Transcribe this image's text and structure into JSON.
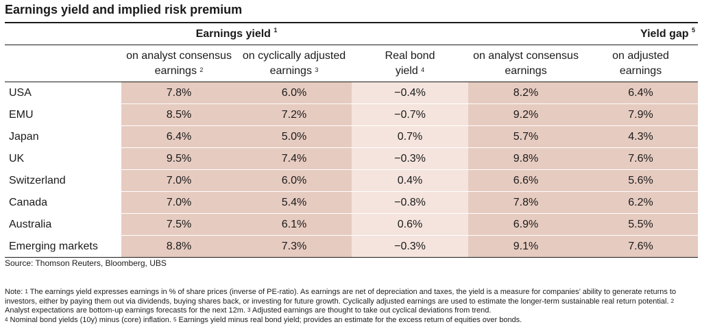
{
  "title": "Earnings yield and implied risk premium",
  "groups": {
    "earnings_yield": {
      "label": "Earnings yield",
      "note": "1"
    },
    "yield_gap": {
      "label": "Yield gap",
      "note": "5"
    }
  },
  "columns": [
    {
      "line1": "on analyst consensus",
      "line2": "earnings",
      "note": "2"
    },
    {
      "line1": "on cyclically adjusted",
      "line2": "earnings",
      "note": "3"
    },
    {
      "line1": "Real bond",
      "line2": "yield",
      "note": "4"
    },
    {
      "line1": "on analyst consensus",
      "line2": "earnings",
      "note": ""
    },
    {
      "line1": "on adjusted",
      "line2": "earnings",
      "note": ""
    }
  ],
  "rows": [
    {
      "label": "USA",
      "values": [
        "7.8%",
        "6.0%",
        "−0.4%",
        "8.2%",
        "6.4%"
      ]
    },
    {
      "label": "EMU",
      "values": [
        "8.5%",
        "7.2%",
        "−0.7%",
        "9.2%",
        "7.9%"
      ]
    },
    {
      "label": "Japan",
      "values": [
        "6.4%",
        "5.0%",
        "0.7%",
        "5.7%",
        "4.3%"
      ]
    },
    {
      "label": "UK",
      "values": [
        "9.5%",
        "7.4%",
        "−0.3%",
        "9.8%",
        "7.6%"
      ]
    },
    {
      "label": "Switzerland",
      "values": [
        "7.0%",
        "6.0%",
        "0.4%",
        "6.6%",
        "5.6%"
      ]
    },
    {
      "label": "Canada",
      "values": [
        "7.0%",
        "5.4%",
        "−0.8%",
        "7.8%",
        "6.2%"
      ]
    },
    {
      "label": "Australia",
      "values": [
        "7.5%",
        "6.1%",
        "0.6%",
        "6.9%",
        "5.5%"
      ]
    },
    {
      "label": "Emerging markets",
      "values": [
        "8.8%",
        "7.3%",
        "−0.3%",
        "9.1%",
        "7.6%"
      ]
    }
  ],
  "source": "Source: Thomson Reuters, Bloomberg, UBS",
  "note": {
    "prefix": "Note: ",
    "n1": "1",
    "t1": " The earnings yield expresses earnings in % of share prices (inverse of PE-ratio). As earnings are net of depreciation and taxes, the yield is a measure for companies’ ability to generate returns to investors, either by paying them out via dividends, buying shares back, or investing for future growth. Cyclically adjusted earnings are used to estimate the longer-term sustainable real return potential.  ",
    "n2": "2",
    "t2": " Analyst expectations are bottom-up earnings forecasts for the next 12m.  ",
    "n3": "3",
    "t3": " Adjusted earnings are thought to take out cyclical deviations from trend. ",
    "n4": "4",
    "t4": " Nominal bond yields (10y) minus (core) inflation.  ",
    "n5": "5",
    "t5": " Earnings yield minus real bond yield; provides an estimate for the excess return of equities over bonds."
  },
  "colors": {
    "shade_dark": "#e6cbc0",
    "shade_light": "#f4e4dd"
  }
}
